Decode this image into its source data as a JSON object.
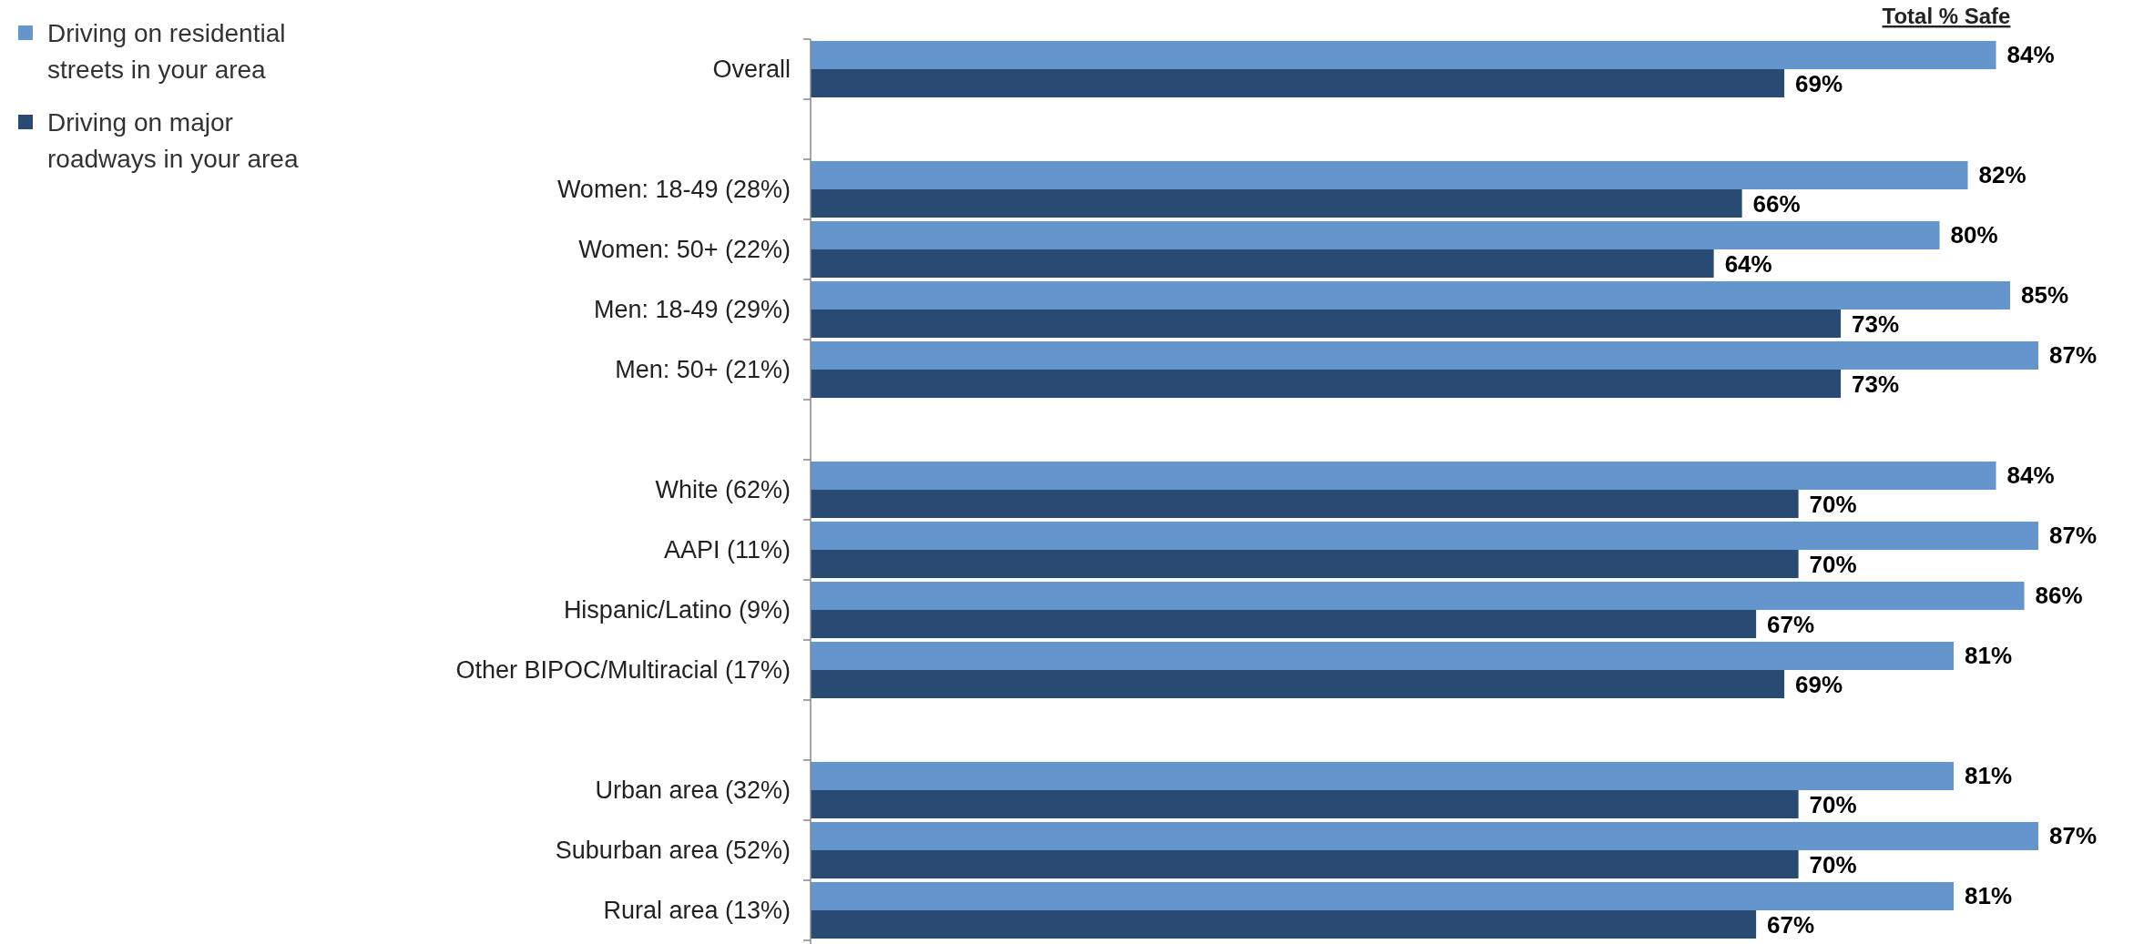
{
  "chart_data": {
    "type": "bar",
    "orientation": "horizontal",
    "title": "Total % Safe",
    "categories": [
      "Overall",
      null,
      "Women: 18-49 (28%)",
      "Women: 50+ (22%)",
      "Men: 18-49 (29%)",
      "Men: 50+ (21%)",
      null,
      "White (62%)",
      "AAPI (11%)",
      "Hispanic/Latino (9%)",
      "Other BIPOC/Multiracial (17%)",
      null,
      "Urban area (32%)",
      "Suburban area (52%)",
      "Rural area (13%)"
    ],
    "series": [
      {
        "name": "Driving on residential streets in your area",
        "color": "#6495cd",
        "values": [
          84,
          null,
          82,
          80,
          85,
          87,
          null,
          84,
          87,
          86,
          81,
          null,
          81,
          87,
          81
        ],
        "value_labels": [
          "84%",
          null,
          "82%",
          "80%",
          "85%",
          "87%",
          null,
          "84%",
          "87%",
          "86%",
          "81%",
          null,
          "81%",
          "87%",
          "81%"
        ]
      },
      {
        "name": "Driving on major roadways in your area",
        "color": "#284a73",
        "values": [
          69,
          null,
          66,
          64,
          73,
          73,
          null,
          70,
          70,
          67,
          69,
          null,
          70,
          70,
          67
        ],
        "value_labels": [
          "69%",
          null,
          "66%",
          "64%",
          "73%",
          "73%",
          null,
          "70%",
          "70%",
          "67%",
          "69%",
          null,
          "70%",
          "70%",
          "67%"
        ]
      }
    ],
    "legend": "top left"
  }
}
